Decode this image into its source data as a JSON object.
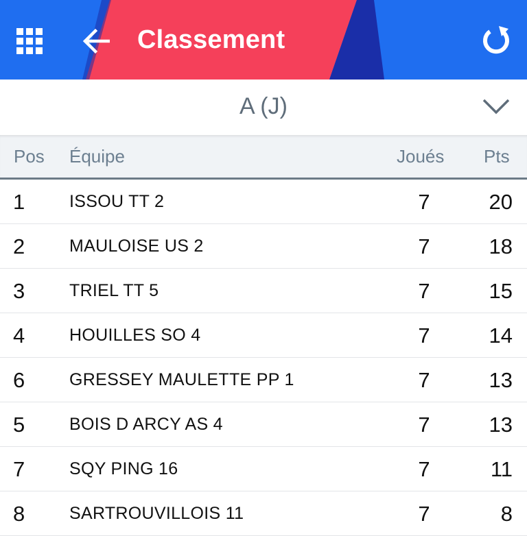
{
  "appbar": {
    "title": "Classement",
    "colors": {
      "primary": "#1f6ef0",
      "accent": "#f5405a",
      "dark_blue": "#1a2ea8"
    },
    "icons": [
      "grid-menu-icon",
      "arrow-left-icon",
      "refresh-icon"
    ]
  },
  "selector": {
    "value": "A (J)",
    "icon": "chevron-down-icon"
  },
  "table": {
    "headers": {
      "pos": "Pos",
      "team": "Équipe",
      "played": "Joués",
      "pts": "Pts"
    },
    "rows": [
      {
        "pos": "1",
        "team": "ISSOU TT 2",
        "played": "7",
        "pts": "20"
      },
      {
        "pos": "2",
        "team": "MAULOISE US 2",
        "played": "7",
        "pts": "18"
      },
      {
        "pos": "3",
        "team": "TRIEL TT 5",
        "played": "7",
        "pts": "15"
      },
      {
        "pos": "4",
        "team": "HOUILLES SO 4",
        "played": "7",
        "pts": "14"
      },
      {
        "pos": "6",
        "team": "GRESSEY MAULETTE PP 1",
        "played": "7",
        "pts": "13"
      },
      {
        "pos": "5",
        "team": "BOIS D ARCY AS 4",
        "played": "7",
        "pts": "13"
      },
      {
        "pos": "7",
        "team": "SQY PING 16",
        "played": "7",
        "pts": "11"
      },
      {
        "pos": "8",
        "team": "SARTROUVILLOIS 11",
        "played": "7",
        "pts": "8"
      }
    ]
  }
}
